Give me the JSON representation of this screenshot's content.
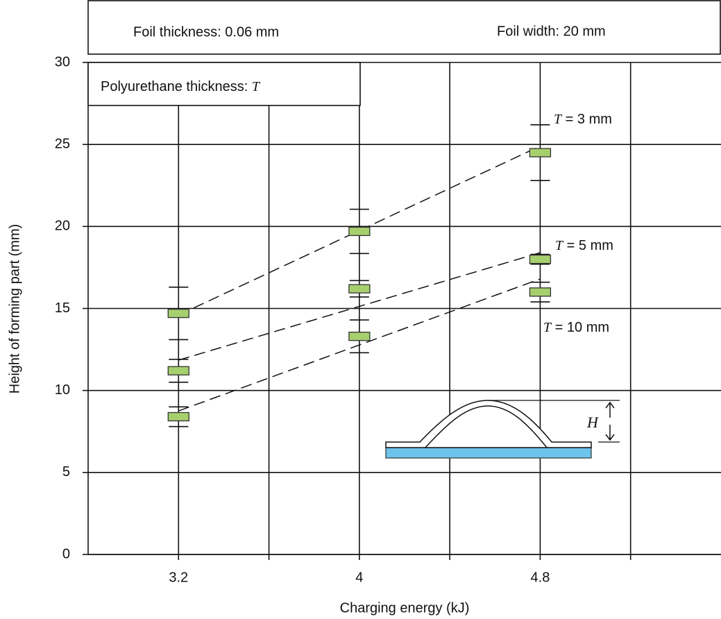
{
  "chart_data": {
    "type": "errorbar",
    "header_left": "Foil thickness: 0.06 mm",
    "header_right": "Foil width: 20 mm",
    "box_label": "Polyurethane thickness: T",
    "x_label": "Charging energy (kJ)",
    "y_label": "Height of forming part (mm)",
    "inset_label": "H",
    "x": [
      3.2,
      4.0,
      4.8
    ],
    "xlim": [
      2.8,
      5.6
    ],
    "xticks": [
      3.2,
      4.0,
      4.8
    ],
    "minor_xticks": [
      3.6,
      4.4,
      5.2
    ],
    "ylim": [
      0,
      30
    ],
    "yticks": [
      0,
      5,
      10,
      15,
      20,
      25,
      30
    ],
    "grid": true,
    "series": [
      {
        "name": "T = 3 mm",
        "color": "#a6cf6e",
        "values": [
          14.7,
          19.7,
          24.5
        ],
        "errors": [
          1.6,
          1.35,
          1.7
        ],
        "trend": [
          14.6,
          24.9
        ]
      },
      {
        "name": "T = 5 mm",
        "color": "#a6cf6e",
        "values": [
          11.2,
          16.2,
          18.0
        ],
        "errors": [
          0.7,
          0.5,
          0.3
        ],
        "trend": [
          11.85,
          18.4
        ]
      },
      {
        "name": "T = 10 mm",
        "color": "#a6cf6e",
        "values": [
          8.4,
          13.3,
          16.0
        ],
        "errors": [
          0.6,
          1.0,
          0.6
        ],
        "trend": [
          8.75,
          16.8
        ]
      }
    ]
  }
}
